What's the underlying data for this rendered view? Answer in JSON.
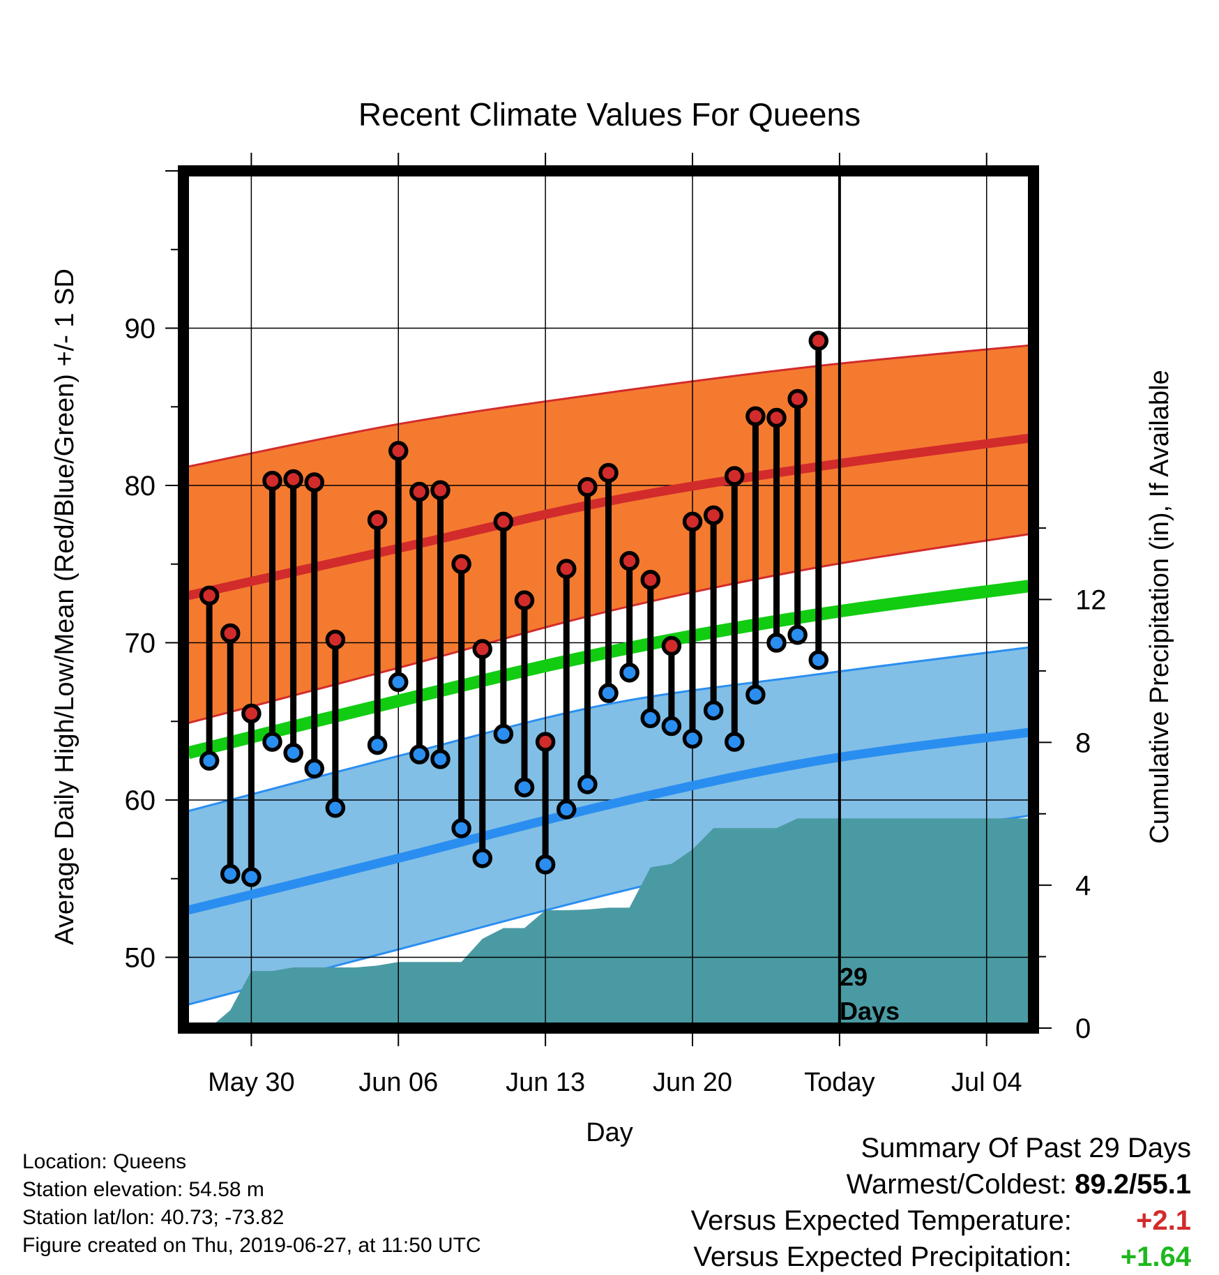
{
  "chart_data": {
    "type": "line",
    "title": "Recent Climate Values For Queens",
    "xlabel": "Day",
    "ylabel": "Average Daily High/Low/Mean (Red/Blue/Green) +/- 1 SD",
    "ylabel_right": "Cumulative Precipitation (in), If Available",
    "x_range": [
      "2019-05-27",
      "2019-07-06"
    ],
    "ylim": [
      45.5,
      100.0
    ],
    "ylim_right": [
      0,
      24
    ],
    "x_ticks": [
      {
        "date": "2019-05-30",
        "label": "May 30"
      },
      {
        "date": "2019-06-06",
        "label": "Jun 06"
      },
      {
        "date": "2019-06-13",
        "label": "Jun 13"
      },
      {
        "date": "2019-06-20",
        "label": "Jun 20"
      },
      {
        "date": "2019-06-27",
        "label": "Today"
      },
      {
        "date": "2019-07-04",
        "label": "Jul 04"
      }
    ],
    "y_ticks": [
      50,
      60,
      70,
      80,
      90
    ],
    "y_ticks_right": [
      0,
      4,
      8,
      12
    ],
    "grid": true,
    "today": "2019-06-27",
    "today_label_line1": "29",
    "today_label_line2": "Days",
    "normal_series": {
      "x": [
        "2019-05-27",
        "2019-06-06",
        "2019-06-16",
        "2019-06-26",
        "2019-07-06"
      ],
      "high_mean": [
        73.0,
        76.0,
        79.0,
        81.2,
        83.0
      ],
      "high_upper": [
        81.2,
        83.9,
        85.9,
        87.6,
        88.9
      ],
      "high_lower": [
        64.9,
        68.4,
        72.0,
        74.8,
        76.9
      ],
      "low_mean": [
        53.0,
        56.3,
        59.7,
        62.5,
        64.3
      ],
      "low_upper": [
        59.3,
        62.8,
        66.1,
        68.0,
        69.7
      ],
      "low_lower": [
        47.0,
        50.5,
        54.0,
        57.0,
        59.0
      ],
      "mean_normal": [
        63.0,
        66.3,
        69.4,
        71.8,
        73.6
      ]
    },
    "series": [
      {
        "name": "Daily High",
        "color": "#d22b2b",
        "x": [
          "2019-05-28",
          "2019-05-29",
          "2019-05-30",
          "2019-05-31",
          "2019-06-01",
          "2019-06-02",
          "2019-06-03",
          "2019-06-05",
          "2019-06-06",
          "2019-06-07",
          "2019-06-08",
          "2019-06-09",
          "2019-06-10",
          "2019-06-11",
          "2019-06-12",
          "2019-06-13",
          "2019-06-14",
          "2019-06-15",
          "2019-06-16",
          "2019-06-17",
          "2019-06-18",
          "2019-06-19",
          "2019-06-20",
          "2019-06-21",
          "2019-06-22",
          "2019-06-23",
          "2019-06-24",
          "2019-06-25",
          "2019-06-26"
        ],
        "values": [
          73.0,
          70.6,
          65.5,
          80.3,
          80.4,
          80.2,
          70.2,
          77.8,
          82.2,
          79.6,
          79.7,
          75.0,
          69.6,
          77.7,
          72.7,
          63.7,
          74.7,
          79.9,
          80.8,
          75.2,
          74.0,
          69.8,
          77.7,
          78.1,
          80.6,
          84.4,
          84.3,
          85.5,
          89.2
        ]
      },
      {
        "name": "Daily Low",
        "color": "#2a8ef0",
        "x": [
          "2019-05-28",
          "2019-05-29",
          "2019-05-30",
          "2019-05-31",
          "2019-06-01",
          "2019-06-02",
          "2019-06-03",
          "2019-06-05",
          "2019-06-06",
          "2019-06-07",
          "2019-06-08",
          "2019-06-09",
          "2019-06-10",
          "2019-06-11",
          "2019-06-12",
          "2019-06-13",
          "2019-06-14",
          "2019-06-15",
          "2019-06-16",
          "2019-06-17",
          "2019-06-18",
          "2019-06-19",
          "2019-06-20",
          "2019-06-21",
          "2019-06-22",
          "2019-06-23",
          "2019-06-24",
          "2019-06-25",
          "2019-06-26"
        ],
        "values": [
          62.5,
          55.3,
          55.1,
          63.7,
          63.0,
          62.0,
          59.5,
          63.5,
          67.5,
          62.9,
          62.6,
          58.2,
          56.3,
          64.2,
          60.8,
          55.9,
          59.4,
          61.0,
          66.8,
          68.1,
          65.2,
          64.7,
          63.9,
          65.7,
          63.7,
          66.7,
          70.0,
          70.5,
          68.9
        ]
      },
      {
        "name": "Cumulative Precipitation",
        "color": "#4a9aa3",
        "x": [
          "2019-05-28",
          "2019-05-29",
          "2019-05-30",
          "2019-05-31",
          "2019-06-01",
          "2019-06-02",
          "2019-06-03",
          "2019-06-04",
          "2019-06-05",
          "2019-06-06",
          "2019-06-07",
          "2019-06-08",
          "2019-06-09",
          "2019-06-10",
          "2019-06-11",
          "2019-06-12",
          "2019-06-13",
          "2019-06-14",
          "2019-06-15",
          "2019-06-16",
          "2019-06-17",
          "2019-06-18",
          "2019-06-19",
          "2019-06-20",
          "2019-06-21",
          "2019-06-22",
          "2019-06-23",
          "2019-06-24",
          "2019-06-25",
          "2019-06-26",
          "2019-07-06"
        ],
        "values": [
          0.0,
          0.5,
          1.6,
          1.6,
          1.7,
          1.7,
          1.7,
          1.7,
          1.75,
          1.85,
          1.85,
          1.85,
          1.85,
          2.5,
          2.8,
          2.8,
          3.3,
          3.3,
          3.32,
          3.37,
          3.37,
          4.5,
          4.6,
          5.0,
          5.6,
          5.6,
          5.6,
          5.6,
          5.87,
          5.87,
          5.87
        ]
      }
    ]
  },
  "info": {
    "location": "Location: Queens",
    "elevation": "Station elevation: 54.58 m",
    "latlon": "Station lat/lon: 40.73; -73.82",
    "created": "Figure created on Thu, 2019-06-27, at 11:50 UTC"
  },
  "summary": {
    "heading": "Summary Of Past 29 Days",
    "warmest_label": "Warmest/Coldest:",
    "warmest_value": "89.2/55.1",
    "temp_label": "Versus Expected Temperature:",
    "temp_value": "+2.1",
    "temp_color": "#d22b2b",
    "precip_label": "Versus Expected Precipitation:",
    "precip_value": "+1.64",
    "precip_color": "#1db81d"
  },
  "colors": {
    "high_band": "#f47a30",
    "high_line": "#d22b2b",
    "low_band": "#82bfe6",
    "low_line": "#2a8ef0",
    "mean_line": "#11cc11",
    "precip_fill": "#4a9aa3",
    "high_marker": "#d22b2b",
    "low_marker": "#2a8ef0"
  }
}
